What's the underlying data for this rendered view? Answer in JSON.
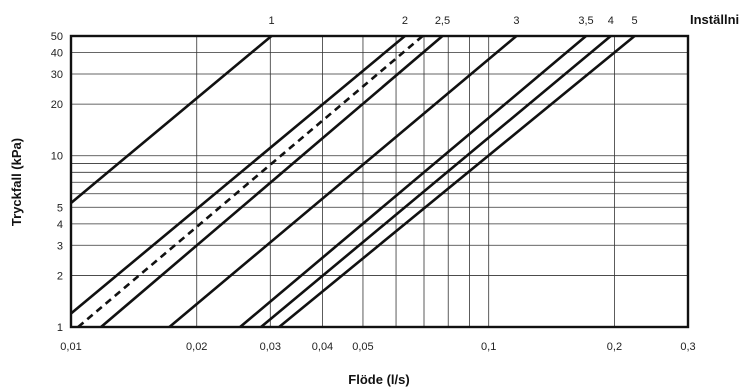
{
  "chart_data": {
    "type": "line",
    "xlabel": "Flöde (l/s)",
    "ylabel": "Tryckfall (kPa)",
    "xscale": "log",
    "yscale": "log",
    "xlim": [
      0.01,
      0.3
    ],
    "ylim": [
      1,
      50
    ],
    "grid": true,
    "x_ticks": [
      {
        "v": 0.01,
        "label": "0,01"
      },
      {
        "v": 0.02,
        "label": "0,02"
      },
      {
        "v": 0.03,
        "label": "0,03"
      },
      {
        "v": 0.04,
        "label": "0,04"
      },
      {
        "v": 0.05,
        "label": "0,05"
      },
      {
        "v": 0.1,
        "label": "0,1"
      },
      {
        "v": 0.2,
        "label": "0,2"
      },
      {
        "v": 0.3,
        "label": "0,3"
      }
    ],
    "x_grid": [
      0.02,
      0.03,
      0.04,
      0.05,
      0.06,
      0.07,
      0.08,
      0.09,
      0.1,
      0.2
    ],
    "y_ticks": [
      {
        "v": 1,
        "label": "1"
      },
      {
        "v": 2,
        "label": "2"
      },
      {
        "v": 3,
        "label": "3"
      },
      {
        "v": 4,
        "label": "4"
      },
      {
        "v": 5,
        "label": "5"
      },
      {
        "v": 10,
        "label": "10"
      },
      {
        "v": 20,
        "label": "20"
      },
      {
        "v": 30,
        "label": "30"
      },
      {
        "v": 40,
        "label": "40"
      },
      {
        "v": 50,
        "label": "50"
      }
    ],
    "y_grid": [
      2,
      3,
      4,
      5,
      6,
      7,
      8,
      9,
      10,
      20,
      30,
      40
    ],
    "settings_label": "Inställning",
    "series": [
      {
        "setting": "1",
        "dashed": false,
        "points": [
          [
            0.01,
            5.3
          ],
          [
            0.0302,
            50
          ]
        ]
      },
      {
        "setting": "2",
        "dashed": false,
        "points": [
          [
            0.01,
            1.2
          ],
          [
            0.063,
            50
          ]
        ]
      },
      {
        "setting": "",
        "dashed": true,
        "points": [
          [
            0.0104,
            1.0
          ],
          [
            0.0695,
            50
          ]
        ]
      },
      {
        "setting": "2,5",
        "dashed": false,
        "points": [
          [
            0.0118,
            1.0
          ],
          [
            0.0775,
            50
          ]
        ]
      },
      {
        "setting": "3",
        "dashed": false,
        "points": [
          [
            0.0172,
            1.0
          ],
          [
            0.1165,
            50
          ]
        ]
      },
      {
        "setting": "3,5",
        "dashed": false,
        "points": [
          [
            0.0254,
            1.0
          ],
          [
            0.171,
            50
          ]
        ]
      },
      {
        "setting": "4",
        "dashed": false,
        "points": [
          [
            0.0285,
            1.0
          ],
          [
            0.196,
            50
          ]
        ]
      },
      {
        "setting": "5",
        "dashed": false,
        "points": [
          [
            0.0315,
            1.0
          ],
          [
            0.2235,
            50
          ]
        ]
      }
    ]
  }
}
